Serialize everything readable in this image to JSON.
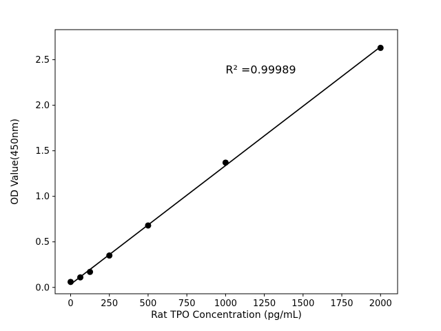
{
  "figure": {
    "background": "#ffffff"
  },
  "chart_data": {
    "type": "scatter",
    "title": "",
    "xlabel": "Rat TPO Concentration (pg/mL)",
    "ylabel": "OD Value(450nm)",
    "x": [
      0,
      62.5,
      125,
      250,
      500,
      1000,
      2000
    ],
    "y": [
      0.06,
      0.11,
      0.17,
      0.35,
      0.68,
      1.37,
      2.63
    ],
    "fit_line": {
      "x1": 0,
      "y1": 0.034,
      "x2": 2000,
      "y2": 2.642
    },
    "annotation": {
      "text": "R² =0.99989",
      "x": 1000,
      "y": 2.35
    },
    "xlim": [
      -100,
      2110
    ],
    "ylim": [
      -0.07,
      2.83
    ],
    "xticks": [
      0,
      250,
      500,
      750,
      1000,
      1250,
      1500,
      1750,
      2000
    ],
    "xtick_labels": [
      "0",
      "250",
      "500",
      "750",
      "1000",
      "1250",
      "1500",
      "1750",
      "2000"
    ],
    "yticks": [
      0.0,
      0.5,
      1.0,
      1.5,
      2.0,
      2.5
    ],
    "ytick_labels": [
      "0.0",
      "0.5",
      "1.0",
      "1.5",
      "2.0",
      "2.5"
    ],
    "marker_color": "#000000",
    "line_color": "#000000",
    "frame_color": "#000000",
    "grid": false,
    "legend": null
  }
}
